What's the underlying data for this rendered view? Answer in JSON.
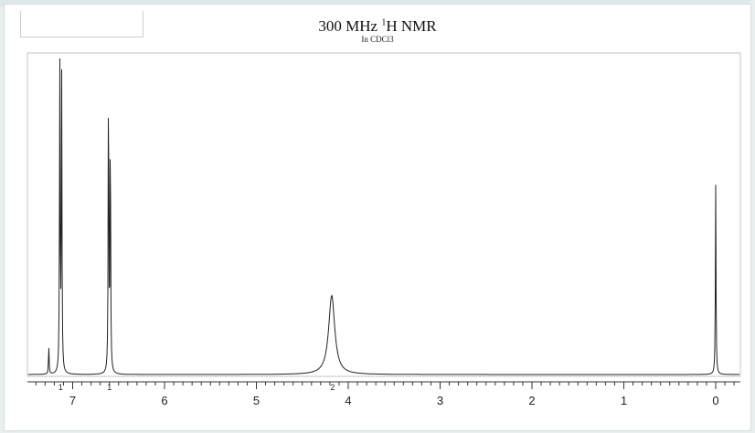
{
  "header": {
    "title_main": "300 MHz ",
    "title_sup": "1",
    "title_rest": "H NMR",
    "subtitle": "In CDCl3"
  },
  "chart_data": {
    "type": "line",
    "title": "300 MHz 1H NMR",
    "subtitle": "In CDCl3",
    "xlabel": "",
    "ylabel": "",
    "x_reversed": true,
    "xlim": [
      7.5,
      -0.3
    ],
    "ylim": [
      0,
      1
    ],
    "xticks": [
      7,
      6,
      5,
      4,
      3,
      2,
      1,
      0
    ],
    "grid": false,
    "peaks": [
      {
        "shift": 7.26,
        "height": 0.09,
        "width": 0.004
      },
      {
        "shift": 7.14,
        "height": 1.0,
        "width": 0.004
      },
      {
        "shift": 7.12,
        "height": 0.95,
        "width": 0.004
      },
      {
        "shift": 6.61,
        "height": 0.97,
        "width": 0.004
      },
      {
        "shift": 6.59,
        "height": 0.8,
        "width": 0.004
      },
      {
        "shift": 4.18,
        "height": 0.25,
        "width": 0.04
      },
      {
        "shift": 0.0,
        "height": 0.6,
        "width": 0.004
      }
    ],
    "integrals": [
      {
        "shift": 7.13,
        "label": "1"
      },
      {
        "shift": 6.6,
        "label": "1"
      },
      {
        "shift": 4.17,
        "label": "2"
      }
    ]
  },
  "style": {
    "line_color": "#222222",
    "axis_color": "#333333",
    "frame_color": "#bfc5c8"
  }
}
